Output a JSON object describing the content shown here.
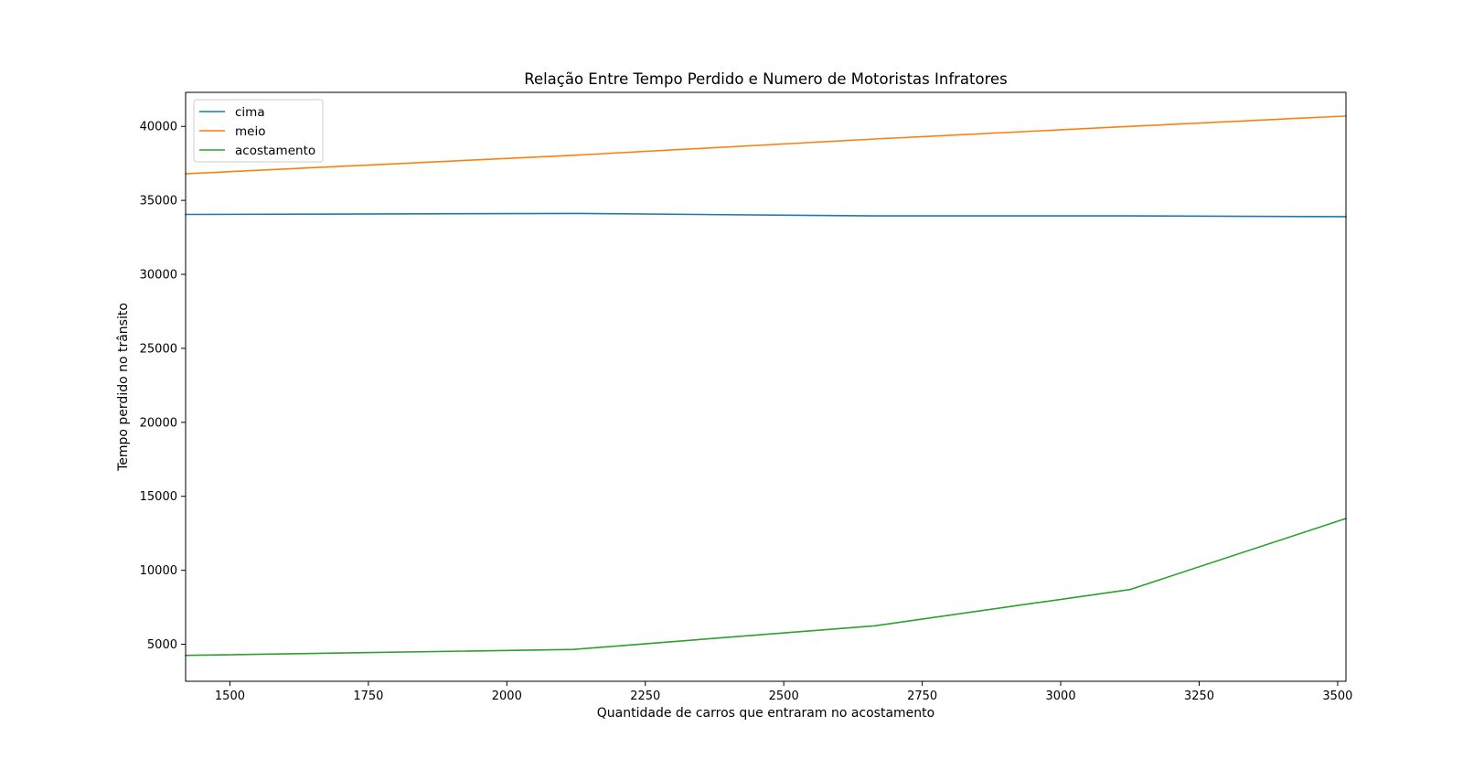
{
  "chart_data": {
    "type": "line",
    "title": "Relação Entre Tempo Perdido e Numero de Motoristas Infratores",
    "xlabel": "Quantidade de carros que entraram no acostamento",
    "ylabel": "Tempo perdido no trânsito",
    "xlim": [
      1420,
      3515
    ],
    "ylim": [
      2500,
      42300
    ],
    "x_ticks": [
      1500,
      1750,
      2000,
      2250,
      2500,
      2750,
      3000,
      3250,
      3500
    ],
    "y_ticks": [
      5000,
      10000,
      15000,
      20000,
      25000,
      30000,
      35000,
      40000
    ],
    "grid": false,
    "legend_position": "upper-left",
    "x": [
      1420,
      2120,
      2665,
      3125,
      3515
    ],
    "series": [
      {
        "name": "cima",
        "color": "#1f77b4",
        "values": [
          34050,
          34120,
          33950,
          33950,
          33900
        ]
      },
      {
        "name": "meio",
        "color": "#ff7f0e",
        "values": [
          36800,
          38050,
          39150,
          40000,
          40700
        ]
      },
      {
        "name": "acostamento",
        "color": "#2ca02c",
        "values": [
          4250,
          4650,
          6250,
          8700,
          13500
        ]
      }
    ]
  }
}
